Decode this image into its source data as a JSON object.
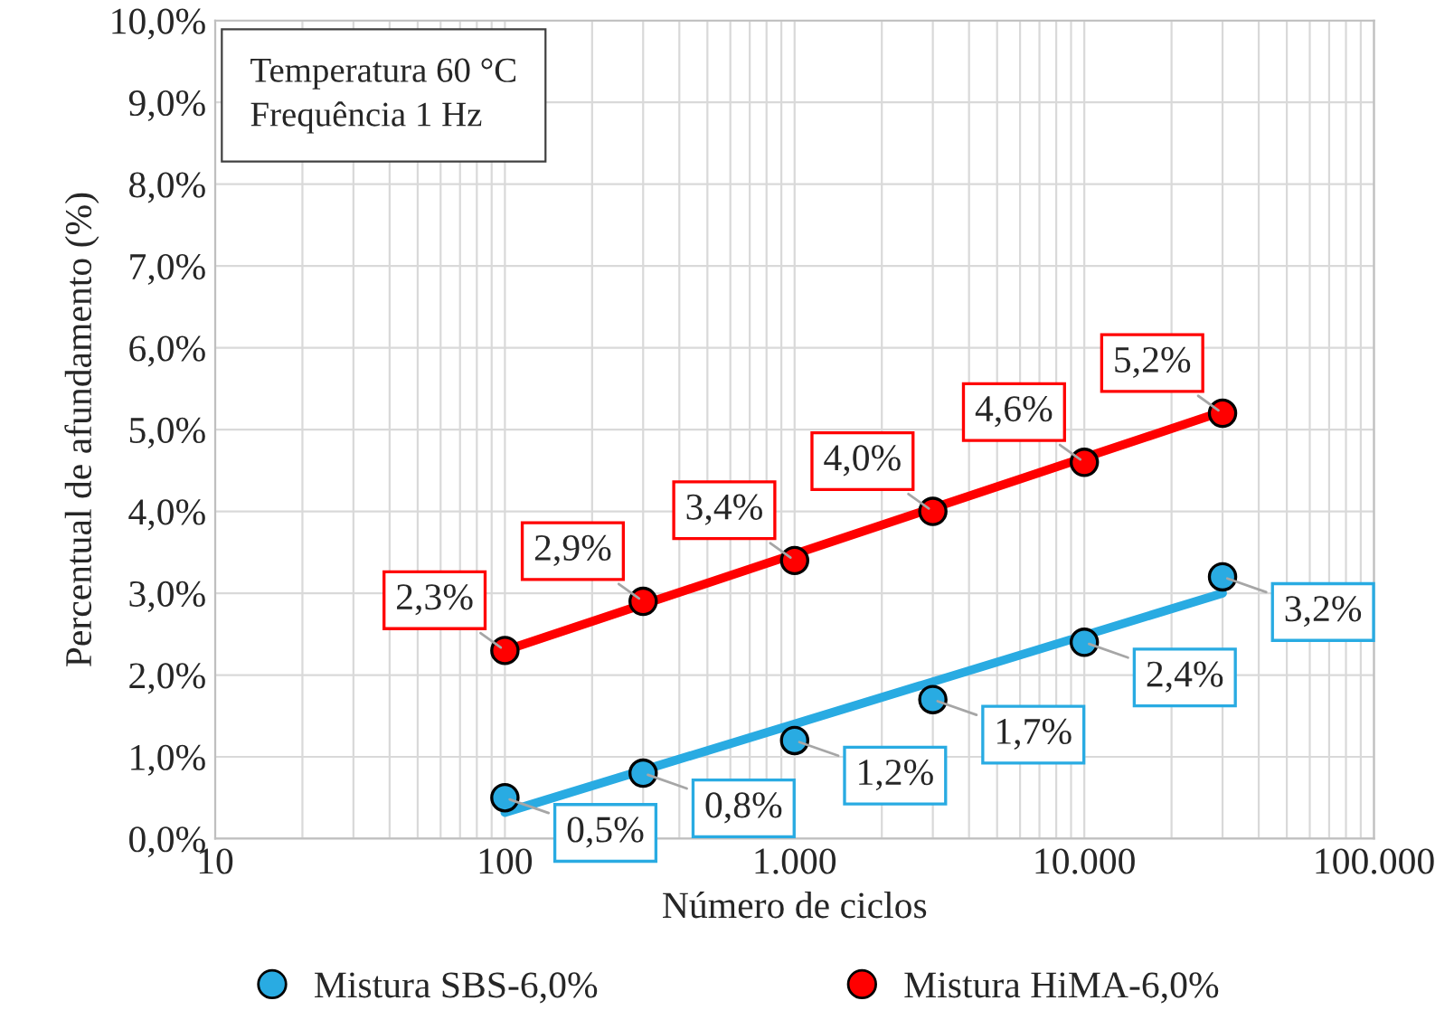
{
  "chart_data": {
    "type": "scatter",
    "xlabel": "Número de ciclos",
    "ylabel": "Percentual de afundamento (%)",
    "log": "x",
    "xlim": [
      10,
      100000
    ],
    "xticks": [
      {
        "value": 10,
        "label": "10"
      },
      {
        "value": 100,
        "label": "100"
      },
      {
        "value": 1000,
        "label": "1.000"
      },
      {
        "value": 10000,
        "label": "10.000"
      },
      {
        "value": 100000,
        "label": "100.000"
      }
    ],
    "ylim": [
      0,
      10
    ],
    "yticks": [
      {
        "value": 0,
        "label": "0,0%"
      },
      {
        "value": 1,
        "label": "1,0%"
      },
      {
        "value": 2,
        "label": "2,0%"
      },
      {
        "value": 3,
        "label": "3,0%"
      },
      {
        "value": 4,
        "label": "4,0%"
      },
      {
        "value": 5,
        "label": "5,0%"
      },
      {
        "value": 6,
        "label": "6,0%"
      },
      {
        "value": 7,
        "label": "7,0%"
      },
      {
        "value": 8,
        "label": "8,0%"
      },
      {
        "value": 9,
        "label": "9,0%"
      },
      {
        "value": 10,
        "label": "10,0%"
      }
    ],
    "grid": true,
    "legend": "bottom",
    "marker": "circle",
    "annotations": [
      "Temperatura 60 °C\nFrequência 1 Hz"
    ],
    "series": [
      {
        "name": "Mistura SBS-6,0%",
        "color": "#29abe2",
        "x": [
          100,
          300,
          1000,
          3000,
          10000,
          30000
        ],
        "values": [
          0.5,
          0.8,
          1.2,
          1.7,
          2.4,
          3.2
        ],
        "value_labels": [
          "0,5%",
          "0,8%",
          "1,2%",
          "1,7%",
          "2,4%",
          "3,2%"
        ]
      },
      {
        "name": "Mistura HiMA-6,0%",
        "color": "#ff0000",
        "x": [
          100,
          300,
          1000,
          3000,
          10000,
          30000
        ],
        "values": [
          2.3,
          2.9,
          3.4,
          4.0,
          4.6,
          5.2
        ],
        "value_labels": [
          "2,3%",
          "2,9%",
          "3,4%",
          "4,0%",
          "4,6%",
          "5,2%"
        ]
      },
      {
        "type": "line",
        "marker": "none",
        "color": "#29abe2",
        "x": [
          100,
          30000
        ],
        "values": [
          0.32,
          3.0
        ]
      },
      {
        "type": "line",
        "marker": "none",
        "color": "#ff0000",
        "x": [
          100,
          30000
        ],
        "values": [
          2.3,
          5.22
        ]
      }
    ]
  }
}
